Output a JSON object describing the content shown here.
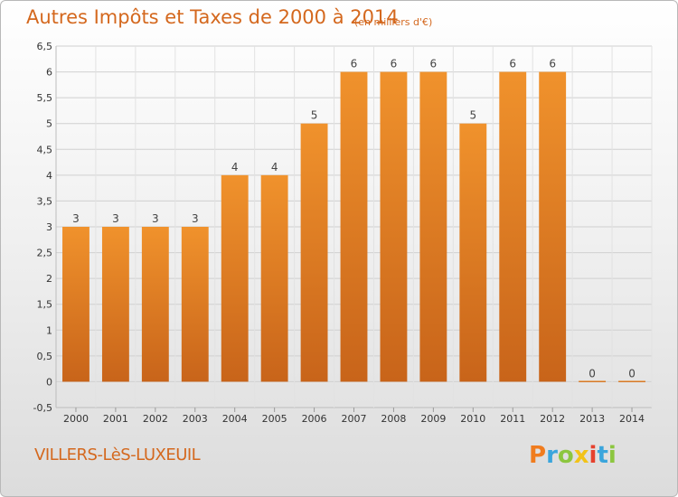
{
  "chart_data": {
    "type": "bar",
    "title": "Autres Impôts et Taxes de 2000 à 2014",
    "subtitle": "(en milliers d'€)",
    "categories": [
      "2000",
      "2001",
      "2002",
      "2003",
      "2004",
      "2005",
      "2006",
      "2007",
      "2008",
      "2009",
      "2010",
      "2011",
      "2012",
      "2013",
      "2014"
    ],
    "values": [
      3,
      3,
      3,
      3,
      4,
      4,
      5,
      6,
      6,
      6,
      5,
      6,
      6,
      0,
      0
    ],
    "ylim": [
      -0.5,
      6.5
    ],
    "yticks": [
      "-0,5",
      "0",
      "0,5",
      "1",
      "1,5",
      "2",
      "2,5",
      "3",
      "3,5",
      "4",
      "4,5",
      "5",
      "5,5",
      "6",
      "6,5"
    ],
    "grid": true,
    "bar_color": "#f0922c",
    "bar_color_dark": "#c8641a"
  },
  "footer": {
    "commune": "VILLERS-LèS-LUXEUIL",
    "logo": "Proxiti",
    "logo_colors": [
      "#f07c1e",
      "#3aa5dc",
      "#8cc63f",
      "#f2c318",
      "#e6412d",
      "#3aa5dc",
      "#8cc63f"
    ]
  }
}
